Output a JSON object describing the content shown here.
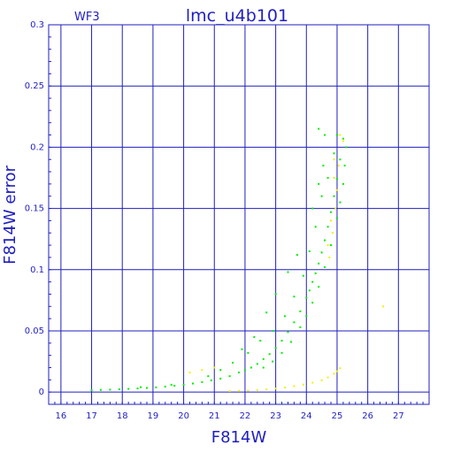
{
  "chart_data": {
    "type": "scatter",
    "title": "lmc_u4b101",
    "subtitle": "WF3",
    "xlabel": "F814W",
    "ylabel": "F814W error",
    "xlim": [
      15.6,
      28.0
    ],
    "ylim": [
      -0.01,
      0.3
    ],
    "x_ticks": [
      16,
      17,
      18,
      19,
      20,
      21,
      22,
      23,
      24,
      25,
      26,
      27
    ],
    "x_tick_labels": [
      "16",
      "17",
      "18",
      "19",
      "20",
      "21",
      "22",
      "23",
      "24",
      "25",
      "26",
      "27"
    ],
    "y_ticks": [
      0,
      0.05,
      0.1,
      0.15,
      0.2,
      0.25,
      0.3
    ],
    "y_tick_labels": [
      "0",
      "0.05",
      "0.1",
      "0.15",
      "0.2",
      "0.25",
      "0.3"
    ],
    "grid": true,
    "series": [
      {
        "color": "#00ee00",
        "points": [
          [
            17.0,
            0.0015
          ],
          [
            17.3,
            0.0018
          ],
          [
            17.6,
            0.002
          ],
          [
            17.9,
            0.0023
          ],
          [
            18.2,
            0.0026
          ],
          [
            18.5,
            0.003
          ],
          [
            18.8,
            0.0034
          ],
          [
            19.1,
            0.0039
          ],
          [
            19.4,
            0.0045
          ],
          [
            19.7,
            0.0052
          ],
          [
            20.0,
            0.006
          ],
          [
            20.3,
            0.007
          ],
          [
            20.6,
            0.0082
          ],
          [
            20.9,
            0.0096
          ],
          [
            21.2,
            0.011
          ],
          [
            21.5,
            0.013
          ],
          [
            21.8,
            0.016
          ],
          [
            22.0,
            0.018
          ],
          [
            22.2,
            0.02
          ],
          [
            22.4,
            0.023
          ],
          [
            22.6,
            0.027
          ],
          [
            22.8,
            0.031
          ],
          [
            23.0,
            0.036
          ],
          [
            23.2,
            0.042
          ],
          [
            23.4,
            0.049
          ],
          [
            23.6,
            0.057
          ],
          [
            23.8,
            0.066
          ],
          [
            24.0,
            0.077
          ],
          [
            24.1,
            0.083
          ],
          [
            24.2,
            0.09
          ],
          [
            24.3,
            0.097
          ],
          [
            24.4,
            0.105
          ],
          [
            24.5,
            0.114
          ],
          [
            24.6,
            0.124
          ],
          [
            24.7,
            0.135
          ],
          [
            24.8,
            0.147
          ],
          [
            24.9,
            0.16
          ],
          [
            25.0,
            0.174
          ],
          [
            25.1,
            0.19
          ],
          [
            25.2,
            0.207
          ],
          [
            22.6,
            0.02
          ],
          [
            22.9,
            0.025
          ],
          [
            23.2,
            0.032
          ],
          [
            23.5,
            0.041
          ],
          [
            23.8,
            0.053
          ],
          [
            24.0,
            0.062
          ],
          [
            24.2,
            0.073
          ],
          [
            24.4,
            0.086
          ],
          [
            24.6,
            0.102
          ],
          [
            24.8,
            0.12
          ],
          [
            25.0,
            0.142
          ],
          [
            25.1,
            0.155
          ],
          [
            25.2,
            0.17
          ],
          [
            25.25,
            0.185
          ],
          [
            25.3,
            0.2
          ],
          [
            21.6,
            0.024
          ],
          [
            22.1,
            0.032
          ],
          [
            22.5,
            0.042
          ],
          [
            22.9,
            0.05
          ],
          [
            23.3,
            0.062
          ],
          [
            23.6,
            0.078
          ],
          [
            23.9,
            0.095
          ],
          [
            24.1,
            0.115
          ],
          [
            24.3,
            0.135
          ],
          [
            24.5,
            0.16
          ],
          [
            24.7,
            0.175
          ],
          [
            24.9,
            0.195
          ],
          [
            25.0,
            0.21
          ],
          [
            23.0,
            0.08
          ],
          [
            23.4,
            0.098
          ],
          [
            23.7,
            0.112
          ],
          [
            24.2,
            0.15
          ],
          [
            24.4,
            0.17
          ],
          [
            24.55,
            0.185
          ],
          [
            24.6,
            0.21
          ],
          [
            24.4,
            0.215
          ],
          [
            22.3,
            0.045
          ],
          [
            21.9,
            0.035
          ],
          [
            22.7,
            0.065
          ],
          [
            20.8,
            0.013
          ],
          [
            21.2,
            0.018
          ],
          [
            18.6,
            0.004
          ],
          [
            19.6,
            0.006
          ]
        ]
      },
      {
        "color": "#f0f000",
        "points": [
          [
            21.5,
            0.0008
          ],
          [
            21.8,
            0.001
          ],
          [
            22.1,
            0.0013
          ],
          [
            22.4,
            0.0017
          ],
          [
            22.7,
            0.0022
          ],
          [
            23.0,
            0.0029
          ],
          [
            23.3,
            0.0037
          ],
          [
            23.6,
            0.0048
          ],
          [
            23.9,
            0.0061
          ],
          [
            24.2,
            0.0077
          ],
          [
            24.5,
            0.0097
          ],
          [
            24.7,
            0.012
          ],
          [
            24.9,
            0.015
          ],
          [
            25.0,
            0.017
          ],
          [
            25.1,
            0.0195
          ],
          [
            20.2,
            0.016
          ],
          [
            20.6,
            0.018
          ],
          [
            21.0,
            0.02
          ],
          [
            26.5,
            0.07
          ],
          [
            24.9,
            0.19
          ],
          [
            25.0,
            0.165
          ],
          [
            24.8,
            0.14
          ],
          [
            25.2,
            0.205
          ],
          [
            24.7,
            0.12
          ],
          [
            24.9,
            0.175
          ],
          [
            25.1,
            0.21
          ],
          [
            24.95,
            0.15
          ],
          [
            24.85,
            0.13
          ],
          [
            25.05,
            0.185
          ],
          [
            24.75,
            0.11
          ]
        ]
      }
    ]
  }
}
